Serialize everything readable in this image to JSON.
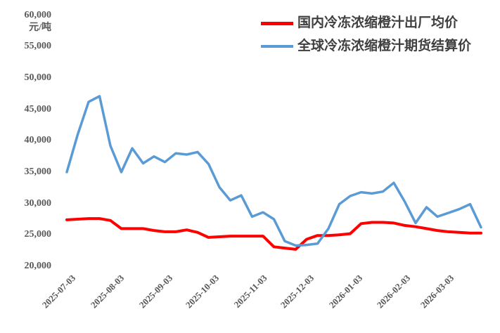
{
  "chart_data": {
    "type": "line",
    "title": "",
    "ylabel": "元/吨",
    "xlabel": "",
    "grid": false,
    "legend_position": "top-center",
    "axis_text_color": "#595959",
    "legend_text_color": "#3f3f3f",
    "ylim": [
      20000,
      60000
    ],
    "y_ticks": [
      60000,
      55000,
      50000,
      45000,
      40000,
      35000,
      30000,
      25000,
      20000
    ],
    "y_tick_labels": [
      "60,000",
      "55,000",
      "50,000",
      "45,000",
      "40,000",
      "35,000",
      "30,000",
      "25,000",
      "20,000"
    ],
    "x_tick_labels": [
      "2025-07-03",
      "2025-08-03",
      "2025-09-03",
      "2025-10-03",
      "2025-11-03",
      "2025-12-03",
      "2026-01-03",
      "2026-02-03",
      "2026-03-03"
    ],
    "x_tick_positions_weeks": [
      0,
      4.43,
      8.86,
      13.14,
      17.57,
      21.86,
      26.29,
      30.71,
      34.71
    ],
    "x": [
      "2025-07-03",
      "2025-07-10",
      "2025-07-17",
      "2025-07-24",
      "2025-07-31",
      "2025-08-07",
      "2025-08-14",
      "2025-08-21",
      "2025-08-28",
      "2025-09-04",
      "2025-09-11",
      "2025-09-18",
      "2025-09-25",
      "2025-10-02",
      "2025-10-09",
      "2025-10-16",
      "2025-10-23",
      "2025-10-30",
      "2025-11-06",
      "2025-11-13",
      "2025-11-20",
      "2025-11-27",
      "2025-12-04",
      "2025-12-11",
      "2025-12-18",
      "2025-12-25",
      "2026-01-01",
      "2026-01-08",
      "2026-01-15",
      "2026-01-22",
      "2026-01-29",
      "2026-02-05",
      "2026-02-12",
      "2026-02-19",
      "2026-02-26",
      "2026-03-05",
      "2026-03-12",
      "2026-03-19",
      "2026-03-26"
    ],
    "series": [
      {
        "name": "国内冷冻浓缩橙汁出厂均价",
        "color": "#fe0000",
        "stroke_width": 4,
        "values": [
          27400,
          27500,
          27600,
          27600,
          27300,
          26000,
          26000,
          26000,
          25700,
          25500,
          25500,
          25800,
          25400,
          24600,
          24700,
          24800,
          24800,
          24800,
          24800,
          23100,
          22900,
          22700,
          24300,
          24900,
          24900,
          25000,
          25200,
          26800,
          27000,
          27000,
          26900,
          26500,
          26300,
          26000,
          25700,
          25500,
          25400,
          25300,
          25300
        ]
      },
      {
        "name": "全球冷冻浓缩橙汁期货结算价",
        "color": "#5b9bd5",
        "stroke_width": 3.5,
        "values": [
          35000,
          41000,
          46200,
          47100,
          39200,
          35000,
          38800,
          36400,
          37500,
          36600,
          38000,
          37800,
          38200,
          36300,
          32600,
          30500,
          31300,
          27900,
          28600,
          27500,
          24000,
          23300,
          23400,
          23600,
          26000,
          29900,
          31200,
          31800,
          31600,
          31900,
          33300,
          30300,
          26900,
          29400,
          27900,
          28500,
          29100,
          29900,
          26200
        ]
      }
    ]
  }
}
